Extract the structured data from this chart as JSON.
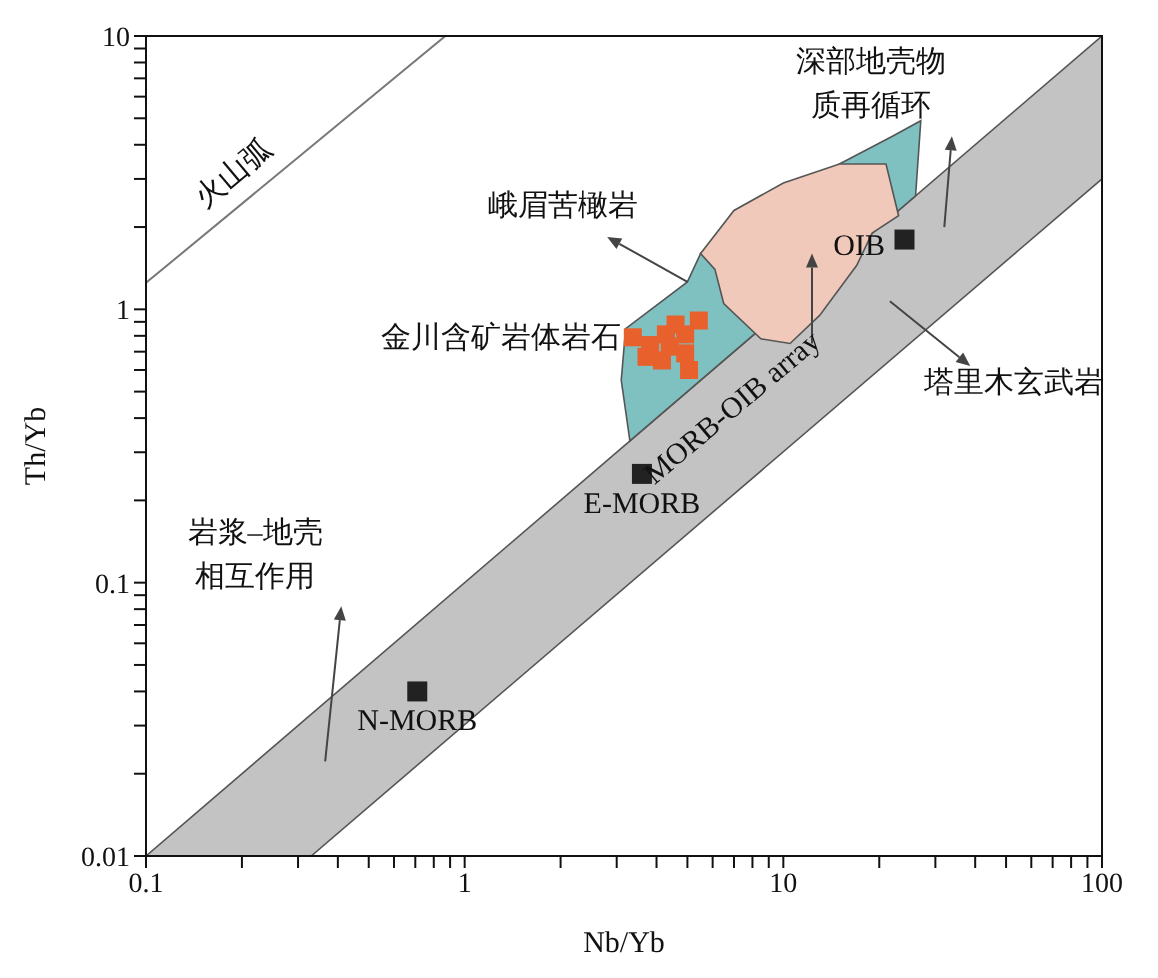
{
  "chart_data": {
    "type": "scatter",
    "xlabel": "Nb/Yb",
    "ylabel": "Th/Yb",
    "log": "xy",
    "xlim": [
      0.1,
      100
    ],
    "xticks": [
      0.1,
      {
        "value": 0.2,
        "label": null
      },
      {
        "value": 0.3,
        "label": null
      },
      {
        "value": 0.4,
        "label": null
      },
      {
        "value": 0.5,
        "label": null
      },
      {
        "value": 0.6,
        "label": null
      },
      {
        "value": 0.7,
        "label": null
      },
      {
        "value": 0.8,
        "label": null
      },
      {
        "value": 0.9,
        "label": null
      },
      1,
      {
        "value": 2,
        "label": null
      },
      {
        "value": 3,
        "label": null
      },
      {
        "value": 4,
        "label": null
      },
      {
        "value": 5,
        "label": null
      },
      {
        "value": 6,
        "label": null
      },
      {
        "value": 7,
        "label": null
      },
      {
        "value": 8,
        "label": null
      },
      {
        "value": 9,
        "label": null
      },
      10,
      {
        "value": 20,
        "label": null
      },
      {
        "value": 30,
        "label": null
      },
      {
        "value": 40,
        "label": null
      },
      {
        "value": 50,
        "label": null
      },
      {
        "value": 60,
        "label": null
      },
      {
        "value": 70,
        "label": null
      },
      {
        "value": 80,
        "label": null
      },
      {
        "value": 90,
        "label": null
      },
      100
    ],
    "ylim": [
      0.01,
      10
    ],
    "yticks": [
      0.01,
      {
        "value": 0.02,
        "label": null
      },
      {
        "value": 0.03,
        "label": null
      },
      {
        "value": 0.04,
        "label": null
      },
      {
        "value": 0.05,
        "label": null
      },
      {
        "value": 0.06,
        "label": null
      },
      {
        "value": 0.07,
        "label": null
      },
      {
        "value": 0.08,
        "label": null
      },
      {
        "value": 0.09,
        "label": null
      },
      0.1,
      {
        "value": 0.2,
        "label": null
      },
      {
        "value": 0.3,
        "label": null
      },
      {
        "value": 0.4,
        "label": null
      },
      {
        "value": 0.5,
        "label": null
      },
      {
        "value": 0.6,
        "label": null
      },
      {
        "value": 0.7,
        "label": null
      },
      {
        "value": 0.8,
        "label": null
      },
      {
        "value": 0.9,
        "label": null
      },
      1,
      {
        "value": 2,
        "label": null
      },
      {
        "value": 3,
        "label": null
      },
      {
        "value": 4,
        "label": null
      },
      {
        "value": 5,
        "label": null
      },
      {
        "value": 6,
        "label": null
      },
      {
        "value": 7,
        "label": null
      },
      {
        "value": 8,
        "label": null
      },
      {
        "value": 9,
        "label": null
      },
      10
    ],
    "series": [
      {
        "name": "MORB-OIB array",
        "type": "area",
        "color": "#c3c3c3",
        "x": [
          0.1,
          100,
          100,
          0.33
        ],
        "values": [
          0.01,
          10,
          3,
          0.01
        ]
      },
      {
        "name": "峨眉苦橄岩",
        "type": "area",
        "color": "#7fc1c1",
        "x": [
          3.3,
          3.1,
          3.2,
          5.0,
          5.5,
          6.1,
          15,
          22,
          27,
          26
        ],
        "values": [
          0.33,
          0.55,
          0.85,
          1.26,
          1.6,
          1.8,
          3.4,
          4.3,
          4.9,
          2.6
        ]
      },
      {
        "name": "塔里木玄武岩",
        "type": "area",
        "color": "#f0c9bb",
        "x": [
          5.5,
          7,
          10,
          15,
          21,
          23,
          19,
          17,
          13,
          10.5,
          8.5,
          6.5,
          6.1
        ],
        "values": [
          1.6,
          2.3,
          2.9,
          3.4,
          3.4,
          2.2,
          1.9,
          1.45,
          0.95,
          0.75,
          0.78,
          1.05,
          1.4
        ]
      },
      {
        "name": "火山弧",
        "type": "line",
        "color": "#777777",
        "x": [
          0.1,
          0.87
        ],
        "values": [
          1.25,
          10
        ]
      },
      {
        "name": "金川含矿岩体岩石",
        "marker": "square",
        "color": "#e8602c",
        "x": [
          3.37,
          3.82,
          4.28,
          4.59,
          4.92,
          5.43,
          3.72,
          4.16,
          4.92,
          5.06,
          4.4
        ],
        "values": [
          0.79,
          0.74,
          0.81,
          0.88,
          0.81,
          0.91,
          0.67,
          0.65,
          0.69,
          0.6,
          0.73
        ]
      },
      {
        "name": "N-MORB",
        "marker": "square",
        "color": "#222222",
        "x": [
          0.71
        ],
        "values": [
          0.04
        ]
      },
      {
        "name": "E-MORB",
        "marker": "square",
        "color": "#222222",
        "x": [
          3.6
        ],
        "values": [
          0.25
        ]
      },
      {
        "name": "OIB",
        "marker": "square",
        "color": "#222222",
        "x": [
          24
        ],
        "values": [
          1.8
        ]
      }
    ],
    "annotations": [
      "深部地壳物质再循环",
      "岩浆–地壳相互作用"
    ]
  }
}
